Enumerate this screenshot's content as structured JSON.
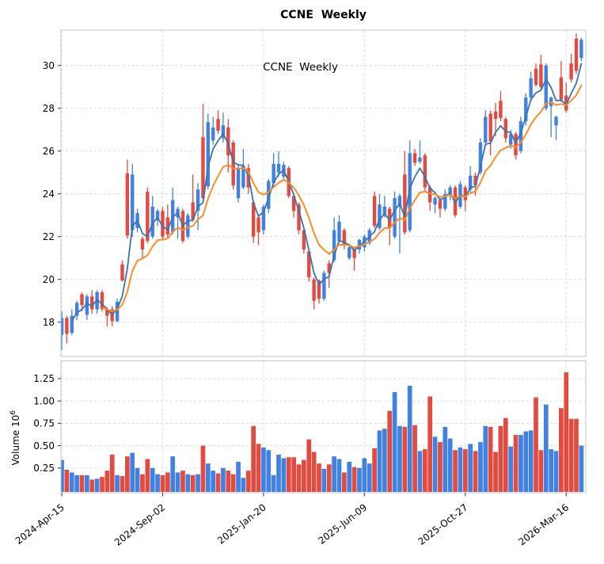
{
  "figure": {
    "kind": "candlestick-volume-chart",
    "background": "#ffffff"
  },
  "chart_data": {
    "type": "candlestick",
    "title": "CCNE  Weekly",
    "annotation": "CCNE  Weekly",
    "timeframe": "weekly",
    "start_date_label": "2024-Apr-15",
    "x_axis": {
      "tick_labels": [
        "2024-Apr-15",
        "2024-Sep-02",
        "2025-Jan-20",
        "2025-Jun-09",
        "2025-Oct-27",
        "2026-Mar-16"
      ],
      "tick_weeks": [
        0,
        20,
        40,
        60,
        80,
        100
      ],
      "rotation_deg": -38
    },
    "price_axis": {
      "tick_values": [
        18,
        20,
        22,
        24,
        26,
        28,
        30
      ],
      "tick_labels": [
        "18",
        "20",
        "22",
        "24",
        "26",
        "28",
        "30"
      ],
      "range": [
        16.4,
        31.66
      ]
    },
    "volume_axis": {
      "label": "Volume  10^6",
      "tick_values": [
        0.25,
        0.5,
        0.75,
        1.0,
        1.25
      ],
      "tick_labels": [
        "0.25",
        "0.50",
        "0.75",
        "1.00",
        "1.25"
      ],
      "range": [
        0,
        1.45
      ]
    },
    "grid": {
      "on": true,
      "style": "dashed",
      "color": "#d9d9d9"
    },
    "legend": {
      "visible": false
    },
    "colors": {
      "up": "#4181e2",
      "down": "#e14b40",
      "fast_ma": "#3a73ae",
      "slow_ma": "#fc8d27",
      "spine": "#c3c9cd",
      "grid": "#d9d9d9",
      "text": "#000000"
    },
    "overlays": [
      {
        "name": "fast-ema",
        "type": "ema",
        "alpha": 0.45,
        "draw_from_index": 2,
        "color_key": "fast_ma",
        "width": 1.8
      },
      {
        "name": "slow-ema",
        "type": "ema",
        "alpha": 0.18,
        "draw_from_index": 8,
        "color_key": "slow_ma",
        "width": 2.0
      }
    ],
    "series": {
      "open": [
        17.4,
        18.2,
        17.5,
        18.3,
        19.3,
        18.35,
        19.2,
        18.6,
        19.4,
        18.6,
        18.6,
        18.05,
        20.7,
        24.95,
        22.3,
        22.4,
        21.9,
        24.1,
        22.0,
        22.75,
        23.2,
        22.9,
        22.2,
        22.9,
        23.2,
        22.0,
        23.6,
        23.2,
        26.65,
        24.35,
        26.5,
        27.5,
        26.6,
        27.1,
        26.4,
        23.8,
        24.3,
        25.2,
        23.6,
        22.9,
        22.3,
        23.3,
        24.5,
        25.0,
        24.8,
        25.2,
        23.9,
        23.5,
        22.3,
        21.3,
        20.0,
        19.95,
        19.1,
        20.75,
        20.9,
        21.8,
        22.3,
        21.0,
        21.4,
        21.4,
        21.5,
        21.7,
        23.9,
        22.4,
        23.0,
        23.3,
        22.0,
        23.4,
        24.9,
        22.3,
        25.9,
        25.5,
        25.8,
        24.3,
        23.5,
        23.7,
        23.3,
        23.9,
        24.3,
        23.4,
        24.3,
        24.2,
        24.85,
        25.0,
        26.4,
        27.75,
        27.85,
        28.35,
        27.5,
        26.3,
        26.8,
        26.0,
        27.4,
        28.5,
        29.85,
        30.05,
        28.0,
        28.1,
        27.2,
        29.45,
        28.6,
        30.1,
        31.25,
        30.35
      ],
      "high": [
        18.5,
        18.3,
        18.6,
        19.0,
        19.4,
        19.3,
        19.5,
        19.5,
        19.5,
        18.7,
        18.75,
        19.1,
        20.9,
        25.6,
        25.4,
        23.3,
        22.0,
        24.3,
        23.9,
        23.3,
        23.4,
        23.5,
        24.3,
        23.4,
        23.3,
        23.1,
        24.9,
        24.5,
        28.2,
        27.75,
        27.6,
        27.9,
        27.8,
        27.5,
        26.5,
        25.4,
        26.1,
        25.4,
        23.7,
        23.0,
        23.5,
        24.7,
        25.9,
        26.0,
        25.5,
        25.3,
        24.0,
        23.6,
        22.4,
        21.4,
        20.1,
        20.0,
        20.4,
        20.9,
        22.9,
        23.0,
        22.4,
        21.6,
        21.5,
        21.9,
        22.1,
        22.4,
        24.1,
        24.0,
        23.9,
        23.4,
        24.1,
        24.0,
        26.0,
        26.5,
        26.1,
        26.5,
        25.9,
        24.4,
        23.9,
        23.8,
        24.2,
        24.4,
        24.4,
        24.6,
        24.4,
        25.3,
        25.0,
        26.6,
        27.9,
        27.9,
        28.25,
        28.8,
        27.6,
        27.0,
        26.9,
        27.6,
        28.7,
        29.7,
        30.1,
        30.5,
        30.1,
        28.55,
        27.65,
        30.2,
        29.2,
        30.55,
        31.5,
        31.3
      ],
      "low": [
        16.7,
        17.0,
        17.4,
        18.1,
        18.5,
        18.1,
        18.4,
        18.4,
        18.5,
        17.8,
        17.8,
        18.0,
        19.9,
        21.9,
        22.0,
        22.2,
        21.0,
        21.7,
        21.9,
        22.5,
        21.9,
        21.9,
        22.1,
        21.9,
        21.7,
        21.9,
        22.7,
        22.3,
        23.65,
        24.2,
        26.3,
        26.8,
        26.4,
        25.0,
        24.2,
        23.6,
        24.2,
        24.0,
        21.7,
        21.6,
        22.1,
        23.1,
        24.3,
        24.8,
        24.6,
        23.8,
        22.9,
        22.1,
        21.2,
        19.9,
        18.6,
        18.87,
        19.0,
        19.6,
        20.8,
        21.7,
        21.4,
        20.9,
        20.4,
        21.2,
        21.3,
        21.6,
        22.4,
        22.3,
        22.9,
        21.6,
        21.9,
        21.2,
        22.1,
        22.2,
        25.3,
        25.4,
        24.1,
        23.2,
        23.1,
        22.9,
        23.2,
        23.7,
        22.9,
        23.3,
        23.2,
        24.0,
        23.9,
        24.9,
        26.2,
        25.8,
        26.7,
        27.4,
        26.4,
        26.1,
        25.6,
        25.9,
        27.2,
        28.3,
        29.0,
        28.9,
        27.9,
        26.65,
        26.5,
        28.3,
        27.8,
        29.2,
        29.6,
        30.2
      ],
      "close": [
        18.2,
        17.45,
        18.3,
        18.9,
        18.8,
        19.2,
        18.6,
        19.4,
        18.6,
        18.3,
        18.05,
        18.95,
        19.95,
        22.05,
        24.9,
        23.1,
        21.4,
        21.8,
        23.4,
        23.2,
        22.0,
        22.1,
        23.7,
        23.3,
        21.8,
        23.0,
        22.8,
        24.2,
        23.8,
        27.35,
        27.1,
        26.95,
        27.2,
        25.8,
        24.4,
        25.2,
        25.3,
        24.3,
        22.0,
        22.2,
        23.4,
        24.6,
        25.4,
        25.4,
        25.35,
        23.9,
        23.2,
        22.3,
        21.4,
        20.1,
        19.0,
        19.1,
        20.3,
        20.3,
        22.3,
        22.7,
        21.6,
        21.5,
        21.0,
        21.85,
        22.0,
        22.3,
        22.5,
        23.5,
        23.4,
        22.4,
        23.8,
        23.9,
        22.2,
        25.9,
        25.45,
        25.7,
        24.3,
        23.6,
        23.8,
        23.3,
        24.0,
        24.3,
        23.0,
        24.45,
        23.7,
        24.85,
        24.4,
        26.4,
        27.6,
        26.45,
        27.5,
        27.55,
        26.6,
        26.8,
        25.8,
        27.4,
        28.5,
        29.4,
        29.1,
        29.0,
        30.0,
        28.5,
        27.6,
        28.4,
        27.9,
        29.35,
        29.75,
        31.2
      ],
      "volume_millions": [
        0.34,
        0.23,
        0.2,
        0.17,
        0.17,
        0.17,
        0.12,
        0.13,
        0.15,
        0.22,
        0.4,
        0.17,
        0.16,
        0.38,
        0.42,
        0.25,
        0.18,
        0.35,
        0.25,
        0.18,
        0.17,
        0.2,
        0.38,
        0.2,
        0.22,
        0.18,
        0.17,
        0.18,
        0.5,
        0.3,
        0.22,
        0.19,
        0.25,
        0.22,
        0.18,
        0.32,
        0.14,
        0.22,
        0.72,
        0.52,
        0.48,
        0.45,
        0.17,
        0.4,
        0.36,
        0.37,
        0.37,
        0.29,
        0.34,
        0.57,
        0.43,
        0.3,
        0.24,
        0.29,
        0.38,
        0.35,
        0.2,
        0.32,
        0.26,
        0.25,
        0.36,
        0.3,
        0.47,
        0.67,
        0.69,
        0.89,
        1.1,
        0.72,
        0.71,
        1.17,
        0.73,
        0.44,
        0.46,
        1.05,
        0.6,
        0.54,
        0.71,
        0.58,
        0.45,
        0.48,
        0.46,
        0.52,
        0.44,
        0.54,
        0.72,
        0.71,
        0.43,
        0.72,
        0.81,
        0.49,
        0.62,
        0.62,
        0.66,
        0.67,
        1.04,
        0.45,
        0.96,
        0.46,
        0.44,
        0.92,
        1.32,
        0.8,
        0.8,
        0.5
      ]
    }
  }
}
